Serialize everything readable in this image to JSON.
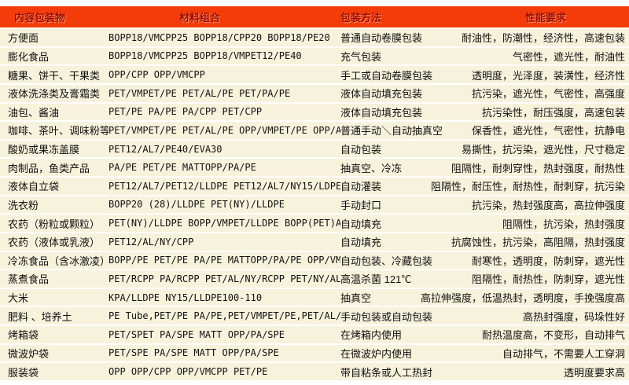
{
  "colors": {
    "header_bg": "#f43c0a",
    "header_text": "#a00c00",
    "row_bg": "#f7f2dc"
  },
  "header": {
    "columns": [
      "内容包装物",
      "材料组合",
      "包装方法",
      "性能要求"
    ]
  },
  "rows": [
    {
      "item": "方便面",
      "materials": "BOPP18/VMCPP25  BOPP18/CPP20  BOPP18/PE20",
      "method": "普通自动卷膜包装",
      "performance": "耐油性，防潮性，经济性，高速包装"
    },
    {
      "item": "膨化食品",
      "materials": "BOPP18/VMCPP25  BOPP18/VMPET12/PE40",
      "method": "充气包装",
      "performance": "气密性，遮光性，耐油性"
    },
    {
      "item": "糖果、饼干、干果类",
      "materials": "OPP/CPP OPP/VMCPP",
      "method": "手工或自动卷膜包装",
      "performance": "透明度，光泽度，装潢性，经济性"
    },
    {
      "item": "液体洗涤类及膏霜类",
      "materials": "PET/VMPET/PE PET/AL/PE  PET/PA/PE",
      "method": "液体自动填充包装",
      "performance": "抗污染，遮光性，气密性，高强度"
    },
    {
      "item": "油包、酱油",
      "materials": "PET/PE  PA/PE PA/CPP PET/CPP",
      "method": "液体自动填充包装",
      "performance": "抗污染性，耐压强度，高速包装"
    },
    {
      "item": "咖啡、茶叶、调味粉等",
      "materials": "PET/VMPET/PE PET/AL/PE OPP/VMPET/PE OPP/AL/PE",
      "method": "普通手动＼自动抽真空",
      "performance": "保香性，遮光性，气密性，抗静电"
    },
    {
      "item": "酸奶或果冻盖膜",
      "materials": "PET12/AL7/PE40/EVA30",
      "method": "自动包装",
      "performance": "易撕性，抗污染，遮光性，尺寸稳定"
    },
    {
      "item": "肉制品，鱼类产品",
      "materials": "PA/PE PET/PE MATTOPP/PA/PE",
      "method": "抽真空、冷冻",
      "performance": "阻隔性，耐刺穿性，热封强度，耐热性"
    },
    {
      "item": "液体自立袋",
      "materials": "PET12/AL7/PET12/LLDPE PET12/AL7/NY15/LDPE",
      "method": "自动灌装",
      "performance": "阻隔性，耐压性，耐热性，耐刺穿，抗污染"
    },
    {
      "item": "洗衣粉",
      "materials": "BOPP20 (28)/LLDPE PET(NY)/LLDPE",
      "method": "手动封口",
      "performance": "抗污染，热封强度高，高拉伸强度"
    },
    {
      "item": "农药（粉粒或颗粒）",
      "materials": "PET(NY)/LLDPE BOPP/VMPET/LLDPE BOPP(PET)AL/LLDPE",
      "method": "自动填充",
      "performance": "阻隔性，抗污染，热封强度"
    },
    {
      "item": "农药（液体或乳液）",
      "materials": "PET12/AL/NY/CPP",
      "method": "自动填充",
      "performance": "抗腐蚀性，抗污染，高阻隔，热封强度"
    },
    {
      "item": "冷冻食品（含冰激凌）",
      "materials": "BOPP/PE PET/PE PA/PE MATTOPP/PA/PE OPP/VMCPP",
      "method": "自动包装、冷藏包装",
      "performance": "耐寒性，透明度，防刺穿，遮光性"
    },
    {
      "item": "蒸煮食品",
      "materials": "PET/RCPP PA/RCPP PET/AL/NY/RCPP PET/NY/AL/RCPP",
      "method": "高温杀菌 121℃",
      "performance": "阻隔性，耐热性，防刺穿，遮光性"
    },
    {
      "item": "大米",
      "materials": "KPA/LLDPE NY15/LLDPE100-110",
      "method": "抽真空",
      "performance": "高拉伸强度，低温热封，透明度，手挽强度高"
    },
    {
      "item": "肥料 、培养土",
      "materials": "PE Tube,PET/PE  PA/PE,PET/VMPET/PE,PET/AL/PE",
      "method": "手动包装或自动包装",
      "performance": "高热封强度，码垛性好"
    },
    {
      "item": "烤箱袋",
      "materials": "PET/SPET PA/SPE MATT OPP/PA/SPE",
      "method": "在烤箱内使用",
      "performance": "耐热温度高，不变形，自动排气"
    },
    {
      "item": "微波炉袋",
      "materials": "PET/SPE PA/SPE MATT OPP/PA/SPE",
      "method": "在微波炉内使用",
      "performance": "自动排气，不需要人工穿洞"
    },
    {
      "item": "服装袋",
      "materials": "OPP  OPP/CPP OPP/VMCPP PET/PE",
      "method": "带自粘条或人工热封",
      "performance": "透明度要求高"
    }
  ]
}
